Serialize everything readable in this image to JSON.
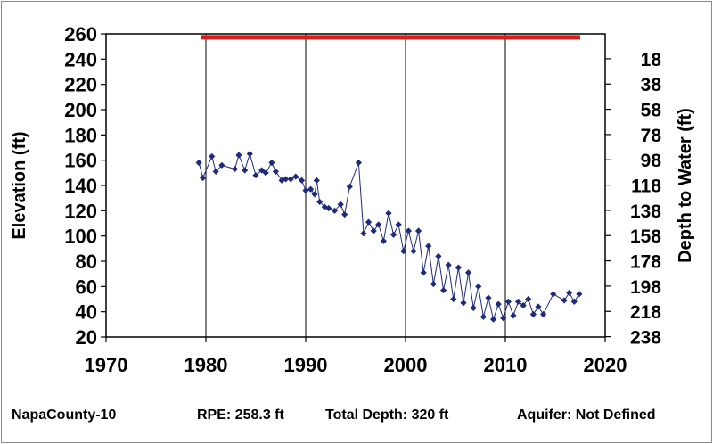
{
  "chart_data": {
    "type": "line",
    "xlim": [
      1970,
      2020
    ],
    "ylim": [
      20,
      260
    ],
    "xticks": [
      1970,
      1980,
      1990,
      2000,
      2010,
      2020
    ],
    "yticks": [
      20,
      40,
      60,
      80,
      100,
      120,
      140,
      160,
      180,
      200,
      220,
      240,
      260
    ],
    "y2ticks": [
      18,
      38,
      58,
      78,
      98,
      118,
      138,
      158,
      178,
      198,
      218,
      238
    ],
    "ylabel": "Elevation (ft)",
    "y2label": "Depth to Water (ft)",
    "grid": "vertical",
    "reference_line": {
      "y": 258.3,
      "x": [
        1979.5,
        2017.5
      ],
      "color": "#e31a1c"
    },
    "series": [
      {
        "color": "#1f2a7a",
        "x": [
          1979.3,
          1979.7,
          1980.6,
          1981.0,
          1981.6,
          1982.9,
          1983.3,
          1983.9,
          1984.4,
          1985.0,
          1985.6,
          1986.0,
          1986.6,
          1987.0,
          1987.6,
          1988.0,
          1988.5,
          1989.0,
          1989.6,
          1990.0,
          1990.5,
          1990.9,
          1991.1,
          1991.4,
          1991.9,
          1992.3,
          1992.9,
          1993.5,
          1993.9,
          1994.4,
          1995.3,
          1995.8,
          1996.3,
          1996.8,
          1997.3,
          1997.8,
          1998.3,
          1998.8,
          1999.3,
          1999.8,
          2000.3,
          2000.8,
          2001.3,
          2001.8,
          2002.3,
          2002.8,
          2003.3,
          2003.8,
          2004.3,
          2004.8,
          2005.3,
          2005.8,
          2006.3,
          2006.8,
          2007.3,
          2007.8,
          2008.3,
          2008.8,
          2009.3,
          2009.8,
          2010.3,
          2010.8,
          2011.3,
          2011.8,
          2012.3,
          2012.8,
          2013.3,
          2013.8,
          2014.8,
          2015.9,
          2016.4,
          2016.9,
          2017.4
        ],
        "values": [
          158,
          146,
          163,
          151,
          156,
          153,
          164,
          152,
          165,
          148,
          152,
          150,
          158,
          151,
          144,
          145,
          145,
          147,
          144,
          136,
          137,
          133,
          144,
          127,
          123,
          122,
          120,
          125,
          117,
          139,
          158,
          102,
          111,
          104,
          109,
          96,
          118,
          101,
          109,
          88,
          104,
          88,
          104,
          71,
          92,
          62,
          84,
          57,
          77,
          50,
          75,
          47,
          71,
          43,
          60,
          36,
          51,
          34,
          46,
          35,
          48,
          37,
          48,
          45,
          50,
          38,
          44,
          38,
          54,
          49,
          55,
          48,
          54
        ]
      }
    ],
    "footer": {
      "well": "NapaCounty-10",
      "rpe": "RPE: 258.3 ft",
      "total_depth": "Total Depth: 320 ft",
      "aquifer": "Aquifer: Not Defined"
    }
  }
}
